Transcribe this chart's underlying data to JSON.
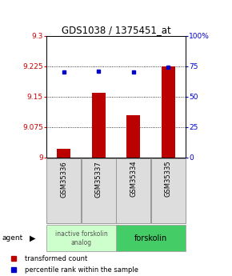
{
  "title": "GDS1038 / 1375451_at",
  "categories": [
    "GSM35336",
    "GSM35337",
    "GSM35334",
    "GSM35335"
  ],
  "bar_values": [
    9.022,
    9.16,
    9.105,
    9.225
  ],
  "percentile_values": [
    70,
    71,
    70,
    74
  ],
  "ylim_left": [
    9.0,
    9.3
  ],
  "ylim_right": [
    0,
    100
  ],
  "yticks_left": [
    9,
    9.075,
    9.15,
    9.225,
    9.3
  ],
  "ytick_labels_left": [
    "9",
    "9.075",
    "9.15",
    "9.225",
    "9.3"
  ],
  "yticks_right": [
    0,
    25,
    50,
    75,
    100
  ],
  "ytick_labels_right": [
    "0",
    "25",
    "50",
    "75",
    "100%"
  ],
  "bar_color": "#bb0000",
  "point_color": "#0000cc",
  "agent_label": "agent",
  "group1_label": "inactive forskolin\nanalog",
  "group2_label": "forskolin",
  "group1_color": "#ccffcc",
  "group2_color": "#44cc66",
  "legend_bar_label": "transformed count",
  "legend_point_label": "percentile rank within the sample",
  "title_fontsize": 8.5,
  "tick_fontsize": 6.5,
  "label_fontsize": 6.5,
  "bar_width": 0.4
}
